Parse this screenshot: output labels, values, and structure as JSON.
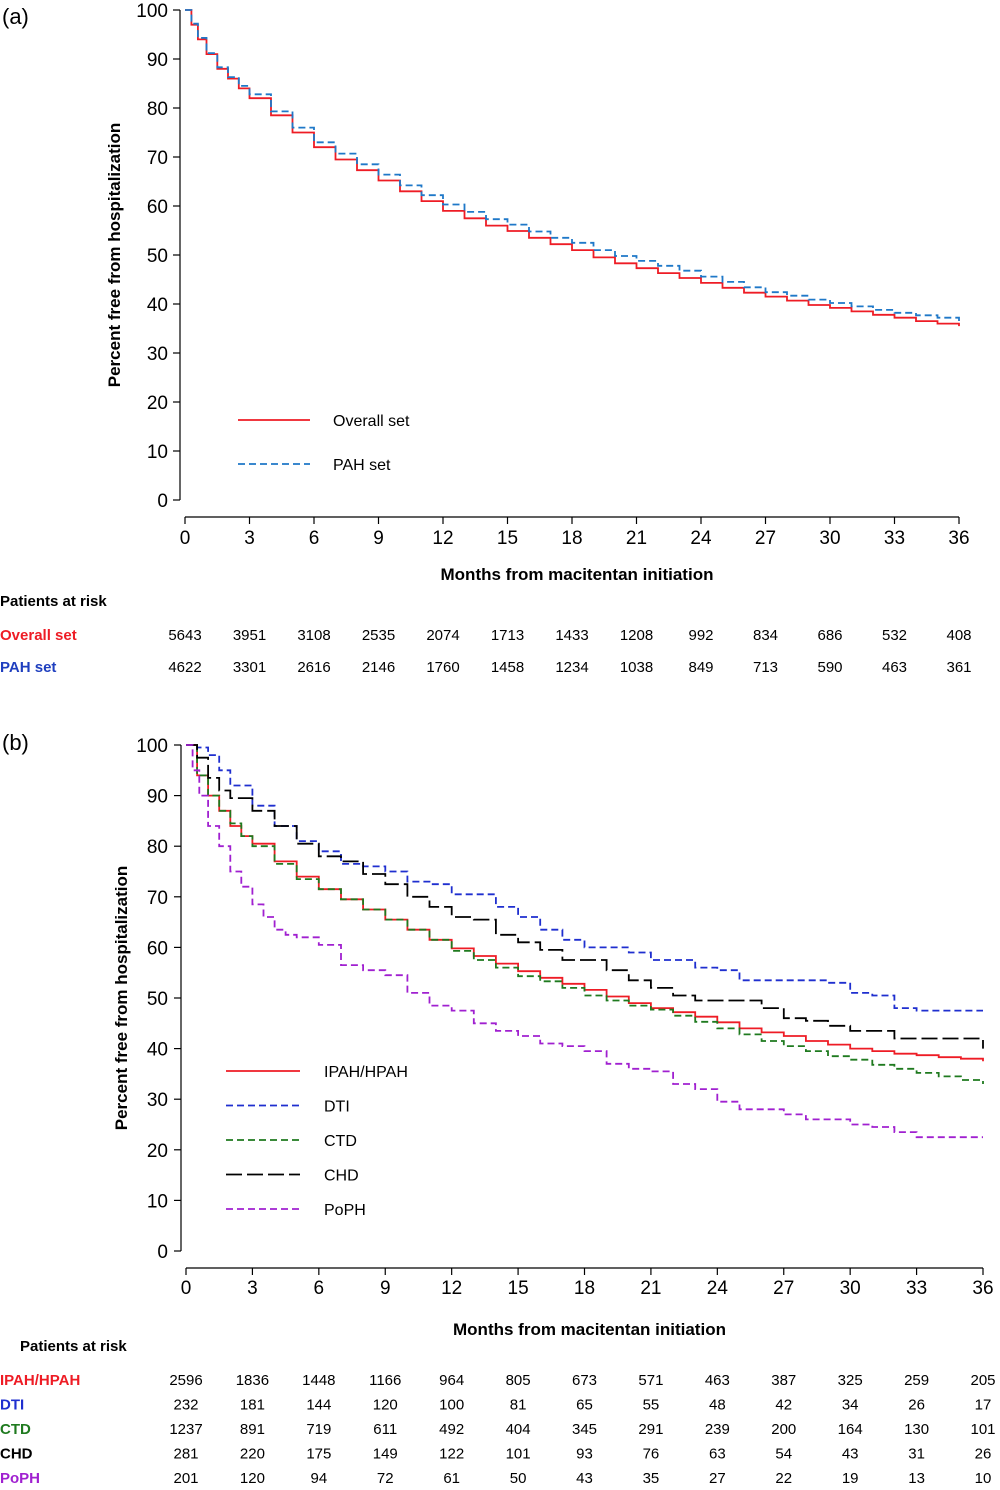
{
  "chart_data": [
    {
      "panel_label": "(a)",
      "type": "line",
      "xlabel": "Months from macitentan initiation",
      "ylabel": "Percent free from hospitalization",
      "xlim": [
        0,
        36
      ],
      "ylim": [
        0,
        100
      ],
      "xticks": [
        0,
        3,
        6,
        9,
        12,
        15,
        18,
        21,
        24,
        27,
        30,
        33,
        36
      ],
      "yticks": [
        0,
        10,
        20,
        30,
        40,
        50,
        60,
        70,
        80,
        90,
        100
      ],
      "legend_position": "lower-left",
      "series": [
        {
          "name": "Overall set",
          "color": "#ee1c25",
          "dash": "solid",
          "x": [
            0,
            0.3,
            0.6,
            1,
            1.5,
            2,
            2.5,
            3,
            4,
            5,
            6,
            7,
            8,
            9,
            10,
            11,
            12,
            13,
            14,
            15,
            16,
            17,
            18,
            19,
            20,
            21,
            22,
            23,
            24,
            25,
            26,
            27,
            28,
            29,
            30,
            31,
            32,
            33,
            34,
            35,
            36
          ],
          "y": [
            100,
            97,
            94,
            91,
            88,
            86,
            84,
            82,
            78.5,
            75,
            72,
            69.5,
            67.3,
            65.2,
            63,
            61,
            59,
            57.5,
            56,
            54.9,
            53.5,
            52.2,
            51,
            49.5,
            48.3,
            47.3,
            46.3,
            45.3,
            44.3,
            43.3,
            42.3,
            41.5,
            40.7,
            39.8,
            39.2,
            38.5,
            37.8,
            37.2,
            36.5,
            36.0,
            35.5
          ]
        },
        {
          "name": "PAH set",
          "color": "#1f78c8",
          "dash": "dashed",
          "x": [
            0,
            0.3,
            0.6,
            1,
            1.5,
            2,
            2.5,
            3,
            4,
            5,
            6,
            7,
            8,
            9,
            10,
            11,
            12,
            13,
            14,
            15,
            16,
            17,
            18,
            19,
            20,
            21,
            22,
            23,
            24,
            25,
            26,
            27,
            28,
            29,
            30,
            31,
            32,
            33,
            34,
            35,
            36
          ],
          "y": [
            100,
            97.2,
            94.3,
            91.2,
            88.3,
            86.3,
            84.5,
            82.8,
            79.3,
            76,
            73,
            70.7,
            68.5,
            66.4,
            64.2,
            62.2,
            60.3,
            58.8,
            57.3,
            56.2,
            54.8,
            53.5,
            52.5,
            51,
            49.8,
            48.8,
            47.8,
            46.8,
            45.6,
            44.5,
            43.4,
            42.4,
            41.7,
            40.9,
            40.2,
            39.5,
            38.8,
            38.2,
            37.7,
            37.2,
            36.5
          ]
        }
      ],
      "risk_table": {
        "header": "Patients at risk",
        "rows": [
          {
            "label": "Overall set",
            "color": "#ee1c25",
            "values": [
              "5643",
              "3951",
              "3108",
              "2535",
              "2074",
              "1713",
              "1433",
              "1208",
              "992",
              "834",
              "686",
              "532",
              "408"
            ]
          },
          {
            "label": "PAH set",
            "color": "#1f3fbf",
            "values": [
              "4622",
              "3301",
              "2616",
              "2146",
              "1760",
              "1458",
              "1234",
              "1038",
              "849",
              "713",
              "590",
              "463",
              "361"
            ]
          }
        ]
      }
    },
    {
      "panel_label": "(b)",
      "type": "line",
      "xlabel": "Months from macitentan initiation",
      "ylabel": "Percent free from hospitalization",
      "xlim": [
        0,
        36
      ],
      "ylim": [
        0,
        100
      ],
      "xticks": [
        0,
        3,
        6,
        9,
        12,
        15,
        18,
        21,
        24,
        27,
        30,
        33,
        36
      ],
      "yticks": [
        0,
        10,
        20,
        30,
        40,
        50,
        60,
        70,
        80,
        90,
        100
      ],
      "legend_position": "lower-left",
      "series": [
        {
          "name": "IPAH/HPAH",
          "color": "#ee1c25",
          "dash": "solid",
          "x": [
            0,
            0.5,
            1,
            1.5,
            2,
            2.5,
            3,
            4,
            5,
            6,
            7,
            8,
            9,
            10,
            11,
            12,
            13,
            14,
            15,
            16,
            17,
            18,
            19,
            20,
            21,
            22,
            23,
            24,
            25,
            26,
            27,
            28,
            29,
            30,
            31,
            32,
            33,
            34,
            35,
            36
          ],
          "y": [
            100,
            94,
            90,
            87,
            84,
            82,
            80.5,
            77,
            74,
            71.5,
            69.5,
            67.5,
            65.5,
            63.5,
            61.5,
            59.8,
            58.3,
            56.8,
            55.3,
            54,
            52.8,
            51.6,
            50.3,
            49,
            48,
            47.2,
            46.3,
            45.2,
            44,
            43.2,
            42.5,
            41.5,
            40.8,
            40,
            39.5,
            39,
            38.7,
            38.3,
            38,
            37.5
          ]
        },
        {
          "name": "DTI",
          "color": "#1f2fcf",
          "dash": "dashed",
          "x": [
            0,
            0.5,
            1,
            1.5,
            2,
            3,
            4,
            5,
            6,
            7,
            8,
            9,
            10,
            11,
            12,
            13,
            14,
            15,
            16,
            17,
            18,
            19,
            20,
            21,
            22,
            23,
            24,
            25,
            26,
            27,
            28,
            29,
            30,
            31,
            32,
            33,
            34,
            35,
            36
          ],
          "y": [
            100,
            99.5,
            98,
            95,
            92,
            88,
            84,
            81,
            79,
            76.5,
            76,
            75,
            73,
            72.5,
            70.5,
            70.5,
            68,
            66,
            63.5,
            61.5,
            60,
            60,
            59,
            57.5,
            57.5,
            56,
            55.5,
            53.5,
            53.5,
            53.5,
            53.5,
            53,
            51,
            50.5,
            48,
            47.5,
            47.5,
            47.5,
            47.5
          ]
        },
        {
          "name": "CTD",
          "color": "#1f7a1f",
          "dash": "dashed",
          "x": [
            0,
            0.5,
            1,
            1.5,
            2,
            2.5,
            3,
            4,
            5,
            6,
            7,
            8,
            9,
            10,
            11,
            12,
            13,
            14,
            15,
            16,
            17,
            18,
            19,
            20,
            21,
            22,
            23,
            24,
            25,
            26,
            27,
            28,
            29,
            30,
            31,
            32,
            33,
            34,
            35,
            36
          ],
          "y": [
            100,
            94,
            90,
            87,
            84.5,
            82,
            80,
            76.5,
            73.5,
            71.5,
            69.5,
            67.5,
            65.5,
            63.5,
            61.5,
            59.3,
            57.5,
            56,
            54.3,
            53.3,
            52,
            50.5,
            49.5,
            48.5,
            47.7,
            46.5,
            45.3,
            44,
            42.8,
            41.5,
            40.5,
            39.5,
            38.5,
            37.8,
            36.8,
            36,
            35.2,
            34.5,
            33.8,
            33
          ]
        },
        {
          "name": "CHD",
          "color": "#000000",
          "dash": "longdash",
          "x": [
            0,
            0.5,
            1,
            1.5,
            2,
            3,
            4,
            5,
            6,
            7,
            8,
            9,
            10,
            11,
            12,
            13,
            14,
            15,
            16,
            17,
            18,
            19,
            20,
            21,
            22,
            23,
            24,
            25,
            26,
            27,
            28,
            29,
            30,
            31,
            32,
            33,
            34,
            35,
            36
          ],
          "y": [
            100,
            97.5,
            93.5,
            91,
            89.5,
            87,
            84,
            80.5,
            78,
            77,
            74.5,
            72.5,
            70,
            68,
            66,
            65.5,
            62.5,
            61,
            59.5,
            57.5,
            57.5,
            55.5,
            53.5,
            52,
            50.5,
            49.5,
            49.5,
            49.5,
            48,
            46,
            45.5,
            44.5,
            43.5,
            43.5,
            42,
            42,
            42,
            42,
            40
          ]
        },
        {
          "name": "PoPH",
          "color": "#a020d0",
          "dash": "dashed",
          "x": [
            0,
            0.3,
            0.6,
            1,
            1.5,
            2,
            2.5,
            3,
            3.5,
            4,
            4.5,
            5,
            6,
            7,
            8,
            9,
            10,
            11,
            12,
            13,
            14,
            15,
            16,
            17,
            18,
            19,
            20,
            21,
            22,
            23,
            24,
            25,
            26,
            27,
            28,
            29,
            30,
            31,
            32,
            33,
            34,
            35,
            36
          ],
          "y": [
            100,
            95,
            90,
            84,
            80,
            75,
            72,
            68.5,
            66,
            63.5,
            62.5,
            62,
            60.5,
            56.5,
            55.5,
            54.5,
            51,
            48.5,
            47.5,
            45,
            43.5,
            42.5,
            41,
            40.5,
            39.5,
            37,
            36,
            35.5,
            33,
            32,
            29.5,
            28,
            28,
            27,
            26,
            26,
            25,
            24.5,
            23.5,
            22.5,
            22.5,
            22.5,
            22.5
          ]
        }
      ],
      "risk_table": {
        "header": "Patients at risk",
        "rows": [
          {
            "label": "IPAH/HPAH",
            "color": "#ee1c25",
            "values": [
              "2596",
              "1836",
              "1448",
              "1166",
              "964",
              "805",
              "673",
              "571",
              "463",
              "387",
              "325",
              "259",
              "205"
            ]
          },
          {
            "label": "DTI",
            "color": "#1f2fcf",
            "values": [
              "232",
              "181",
              "144",
              "120",
              "100",
              "81",
              "65",
              "55",
              "48",
              "42",
              "34",
              "26",
              "17"
            ]
          },
          {
            "label": "CTD",
            "color": "#1f7a1f",
            "values": [
              "1237",
              "891",
              "719",
              "611",
              "492",
              "404",
              "345",
              "291",
              "239",
              "200",
              "164",
              "130",
              "101"
            ]
          },
          {
            "label": "CHD",
            "color": "#000000",
            "values": [
              "281",
              "220",
              "175",
              "149",
              "122",
              "101",
              "93",
              "76",
              "63",
              "54",
              "43",
              "31",
              "26"
            ]
          },
          {
            "label": "PoPH",
            "color": "#a020d0",
            "values": [
              "201",
              "120",
              "94",
              "72",
              "61",
              "50",
              "43",
              "35",
              "27",
              "22",
              "19",
              "13",
              "10"
            ]
          }
        ]
      }
    }
  ]
}
